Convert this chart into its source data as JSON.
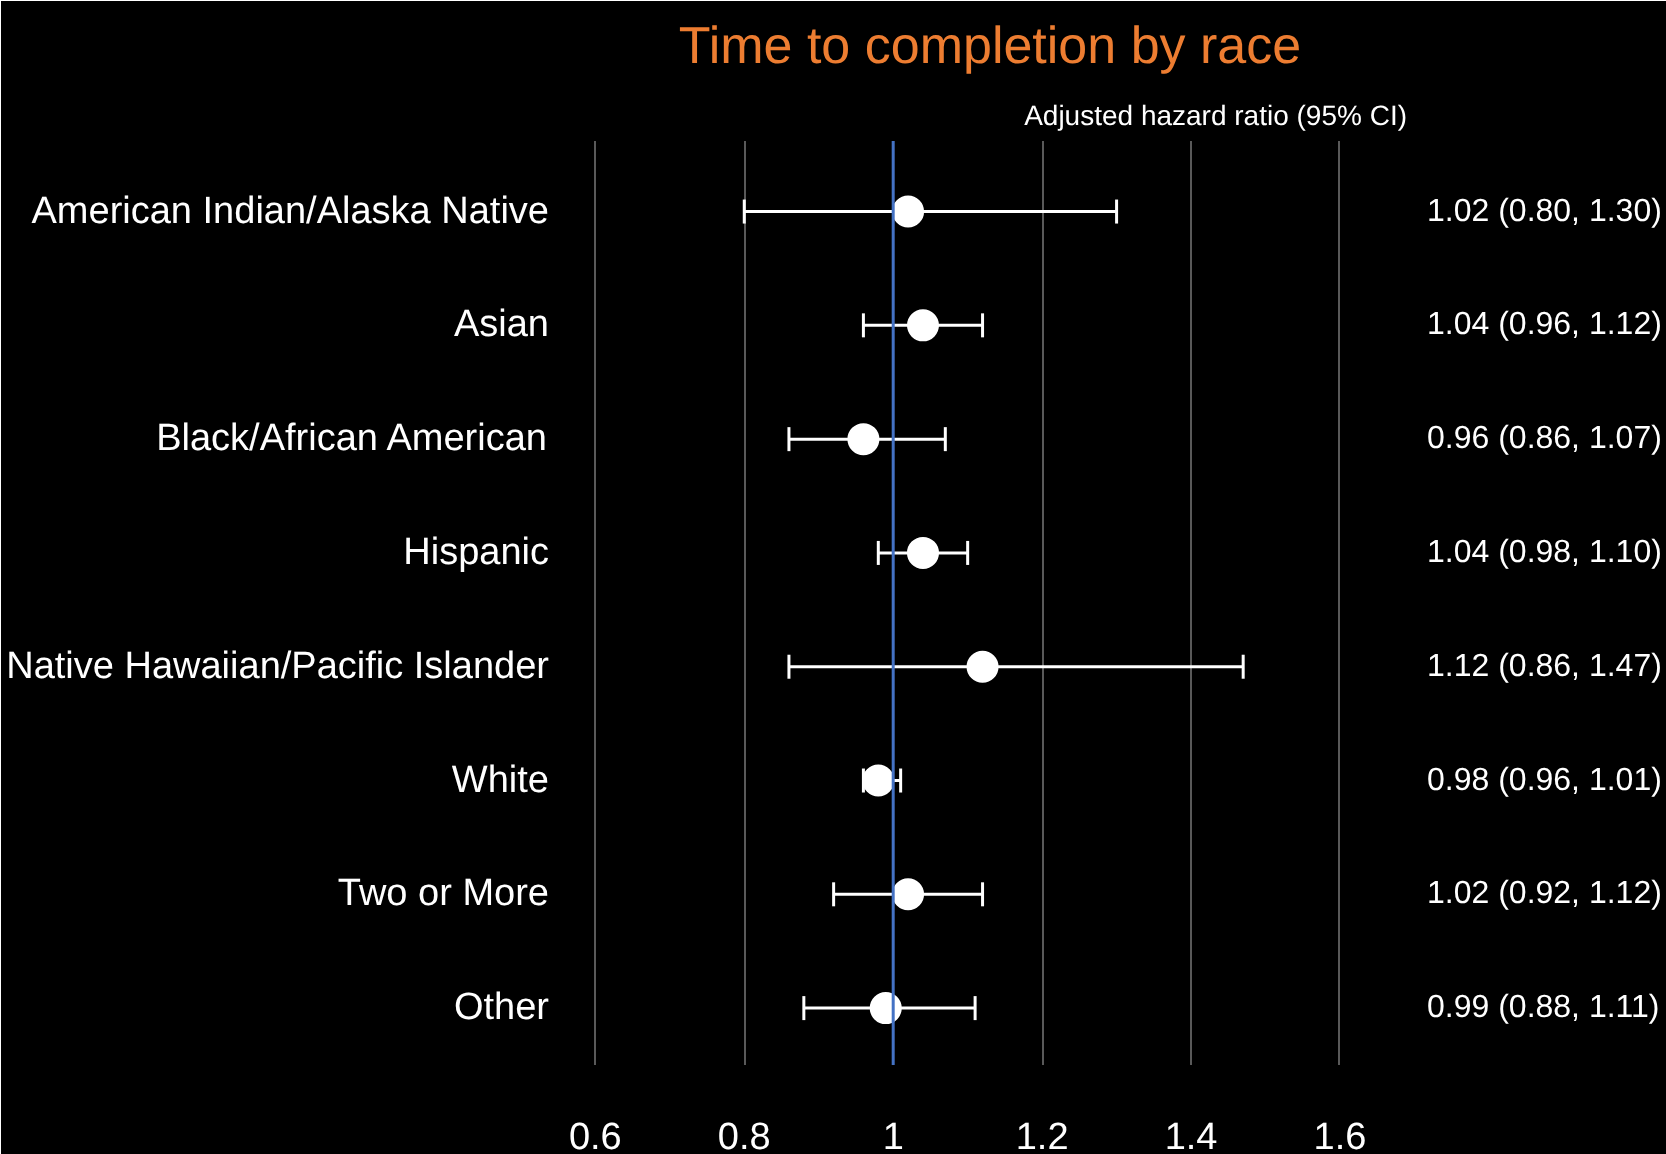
{
  "chart_data": {
    "type": "scatter",
    "orientation": "horizontal",
    "title": "Time to completion by race",
    "annotations": [
      "Adjusted hazard ratio (95% CI)"
    ],
    "categories": [
      "American Indian/Alaska Native",
      "Asian",
      "Black/African American",
      "Hispanic",
      "Native Hawaiian/Pacific Islander",
      "White",
      "Two or More",
      "Other"
    ],
    "values": [
      1.02,
      1.04,
      0.96,
      1.04,
      1.12,
      0.98,
      1.02,
      0.99
    ],
    "errors": [
      [
        0.8,
        1.3
      ],
      [
        0.96,
        1.12
      ],
      [
        0.86,
        1.07
      ],
      [
        0.98,
        1.1
      ],
      [
        0.86,
        1.47
      ],
      [
        0.96,
        1.01
      ],
      [
        0.92,
        1.12
      ],
      [
        0.88,
        1.11
      ]
    ],
    "value_labels": [
      "1.02 (0.80, 1.30)",
      "1.04 (0.96, 1.12)",
      "0.96 (0.86, 1.07)",
      "1.04 (0.98, 1.10)",
      "1.12 (0.86, 1.47)",
      "0.98 (0.96, 1.01)",
      "1.02 (0.92, 1.12)",
      "0.99 (0.88, 1.11)"
    ],
    "color": "#ffffff",
    "marker": "circle",
    "xlim": [
      0.57,
      1.69
    ],
    "xticks": [
      {
        "value": 0.6,
        "label": "0.6"
      },
      {
        "value": 0.8,
        "label": "0.8"
      },
      {
        "value": 1,
        "label": "1"
      },
      {
        "value": 1.2,
        "label": "1.2"
      },
      {
        "value": 1.4,
        "label": "1.4"
      },
      {
        "value": 1.6,
        "label": "1.6"
      }
    ],
    "grid": "x",
    "ref_lines": [
      {
        "axis": "x",
        "value": 1,
        "color": "#4472c4"
      }
    ]
  }
}
